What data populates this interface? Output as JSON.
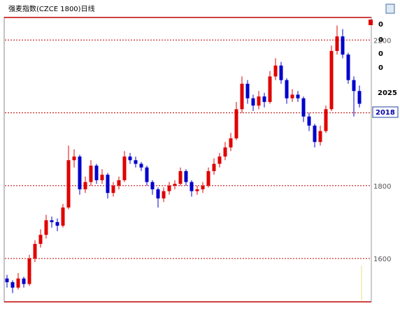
{
  "chart_data": {
    "type": "candlestick",
    "title": "强麦指数(CZCE 1800)日线",
    "up_color": "#e00000",
    "down_color": "#0000cc",
    "grid_color": "#c00000",
    "ylim": [
      1481,
      2262
    ],
    "yticks": [
      1600,
      1800,
      2200
    ],
    "gridlines": [
      1600,
      1800,
      2000,
      2200
    ],
    "side_labels": [
      "0",
      "0",
      "0",
      "0",
      "2025",
      "2018"
    ],
    "open": [
      1545,
      1535,
      1520,
      1545,
      1530,
      1600,
      1640,
      1665,
      1705,
      1700,
      1690,
      1740,
      1870,
      1880,
      1790,
      1810,
      1855,
      1815,
      1830,
      1780,
      1800,
      1815,
      1880,
      1870,
      1860,
      1850,
      1810,
      1790,
      1765,
      1785,
      1800,
      1805,
      1840,
      1810,
      1785,
      1790,
      1800,
      1840,
      1860,
      1880,
      1905,
      1930,
      2010,
      2080,
      2040,
      2020,
      2045,
      2030,
      2100,
      2130,
      2090,
      2040,
      2050,
      2040,
      1990,
      1965,
      1920,
      1950,
      2010,
      2170,
      2210,
      2160,
      2090,
      2060
    ],
    "high": [
      1555,
      1540,
      1560,
      1550,
      1610,
      1650,
      1680,
      1720,
      1715,
      1710,
      1750,
      1910,
      1900,
      1885,
      1825,
      1870,
      1860,
      1845,
      1835,
      1810,
      1825,
      1895,
      1890,
      1880,
      1865,
      1855,
      1815,
      1795,
      1795,
      1810,
      1815,
      1850,
      1845,
      1815,
      1800,
      1810,
      1850,
      1875,
      1890,
      1920,
      1945,
      2030,
      2100,
      2090,
      2050,
      2060,
      2055,
      2115,
      2150,
      2140,
      2095,
      2065,
      2060,
      2045,
      2000,
      1970,
      1965,
      2020,
      2185,
      2240,
      2230,
      2165,
      2100,
      2075
    ],
    "low": [
      1520,
      1505,
      1515,
      1520,
      1525,
      1590,
      1630,
      1655,
      1685,
      1675,
      1685,
      1735,
      1850,
      1775,
      1780,
      1800,
      1805,
      1805,
      1765,
      1770,
      1790,
      1810,
      1860,
      1850,
      1840,
      1800,
      1775,
      1740,
      1755,
      1775,
      1790,
      1800,
      1800,
      1770,
      1775,
      1780,
      1795,
      1830,
      1850,
      1870,
      1895,
      1925,
      2000,
      2025,
      2005,
      2010,
      2015,
      2025,
      2090,
      2080,
      2025,
      2030,
      2030,
      1975,
      1950,
      1905,
      1910,
      1945,
      2005,
      2160,
      2150,
      2080,
      1990,
      2015
    ],
    "close": [
      1535,
      1520,
      1545,
      1530,
      1600,
      1640,
      1665,
      1705,
      1700,
      1690,
      1740,
      1870,
      1880,
      1790,
      1810,
      1855,
      1815,
      1830,
      1780,
      1800,
      1815,
      1880,
      1870,
      1860,
      1850,
      1810,
      1790,
      1765,
      1785,
      1800,
      1805,
      1840,
      1810,
      1785,
      1790,
      1800,
      1840,
      1860,
      1880,
      1905,
      1930,
      2010,
      2080,
      2040,
      2020,
      2045,
      2030,
      2100,
      2130,
      2090,
      2040,
      2050,
      2040,
      1990,
      1965,
      1920,
      1950,
      2010,
      2170,
      2210,
      2160,
      2090,
      2060,
      2025
    ]
  }
}
